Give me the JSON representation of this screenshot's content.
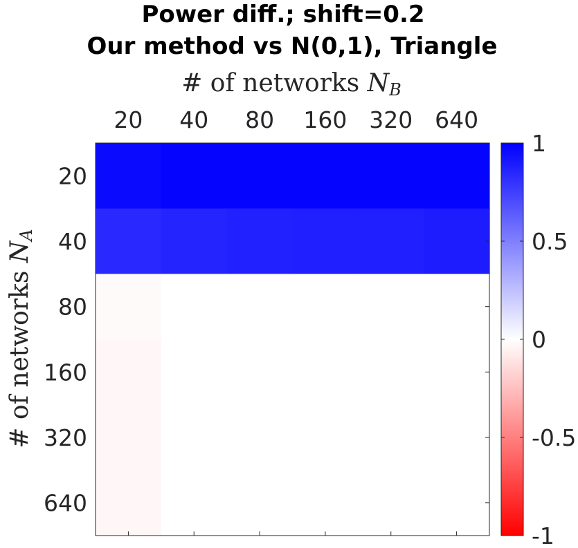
{
  "chart_data": {
    "type": "heatmap",
    "title": "Power diff.; shift=0.2",
    "subtitle": "Our method vs N(0,1), Triangle",
    "xlabel": "# of networks",
    "xlabel_var": "N",
    "xlabel_sub": "B",
    "ylabel": "# of networks",
    "ylabel_var": "N",
    "ylabel_sub": "A",
    "x_categories": [
      "20",
      "40",
      "80",
      "160",
      "320",
      "640"
    ],
    "y_categories": [
      "20",
      "40",
      "80",
      "160",
      "320",
      "640"
    ],
    "x_axis_position": "top",
    "values": [
      [
        0.96,
        0.98,
        0.98,
        0.98,
        0.98,
        0.98
      ],
      [
        0.84,
        0.86,
        0.87,
        0.88,
        0.88,
        0.89
      ],
      [
        -0.02,
        0.0,
        0.0,
        0.0,
        0.0,
        0.0
      ],
      [
        -0.03,
        0.0,
        0.0,
        0.0,
        0.0,
        0.0
      ],
      [
        -0.03,
        0.0,
        0.0,
        0.0,
        0.0,
        0.0
      ],
      [
        -0.03,
        0.0,
        0.0,
        0.0,
        0.0,
        0.0
      ]
    ],
    "colorbar": {
      "range": [
        -1,
        1
      ],
      "ticks": [
        1,
        0.5,
        0,
        -0.5,
        -1
      ],
      "tick_labels": [
        "1",
        "0.5",
        "0",
        "-0.5",
        "-1"
      ],
      "low_color": "#ff0000",
      "mid_color": "#ffffff",
      "high_color": "#0000ff"
    },
    "grid": false,
    "legend": "none"
  }
}
